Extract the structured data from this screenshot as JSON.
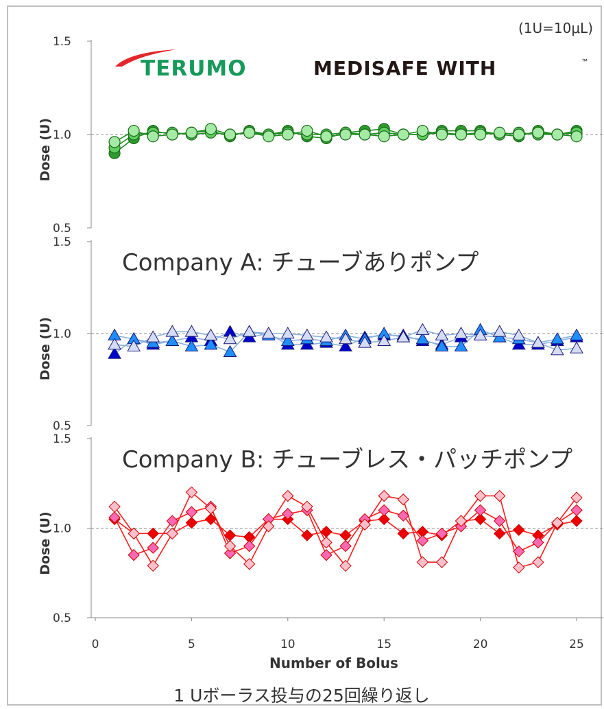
{
  "unit_note": "(1U=10μL)",
  "caption": "1 Uボーラス投与の25回繰り返し",
  "logos": {
    "terumo": "TERUMO",
    "product": "MEDISAFE WITH",
    "product_tm": "™"
  },
  "chart_data": [
    {
      "type": "line",
      "title": "",
      "ylabel": "Dose (U)",
      "ylim": [
        0.5,
        1.5
      ],
      "yticks": [
        "1.5",
        "1.0",
        "0.5"
      ],
      "reference_line": 1.0,
      "marker": "circle",
      "colors": {
        "line": "#1e8c1e",
        "fill_dark": "#2d9b2d",
        "fill_mid": "#5fcf5f",
        "fill_light": "#a5eba5",
        "stroke": "#1a6b1a"
      },
      "x": [
        1,
        2,
        3,
        4,
        5,
        6,
        7,
        8,
        9,
        10,
        11,
        12,
        13,
        14,
        15,
        16,
        17,
        18,
        19,
        20,
        21,
        22,
        23,
        24,
        25
      ],
      "series": [
        {
          "values": [
            0.9,
            0.98,
            1.02,
            1.0,
            1.01,
            1.02,
            0.99,
            1.02,
            1.0,
            1.02,
            0.99,
            0.98,
            1.01,
            1.02,
            1.03,
            1.0,
            1.0,
            1.02,
            1.02,
            1.02,
            1.0,
            0.99,
            1.02,
            1.0,
            1.02
          ]
        },
        {
          "values": [
            0.93,
            1.0,
            1.01,
            1.01,
            1.0,
            1.01,
            1.0,
            1.01,
            1.0,
            1.01,
            1.0,
            1.0,
            1.01,
            1.0,
            1.01,
            1.0,
            1.0,
            1.01,
            1.0,
            1.01,
            1.0,
            1.01,
            1.0,
            1.0,
            1.01
          ]
        },
        {
          "values": [
            0.96,
            1.02,
            0.99,
            1.0,
            1.01,
            1.03,
            1.0,
            1.01,
            0.99,
            1.0,
            1.02,
            0.99,
            1.0,
            1.0,
            0.99,
            1.0,
            1.02,
            1.0,
            1.0,
            1.0,
            1.01,
            1.0,
            1.01,
            1.0,
            0.99
          ]
        }
      ]
    },
    {
      "type": "line",
      "title": "Company A: チューブありポンプ",
      "ylabel": "Dose (U)",
      "ylim": [
        0.5,
        1.5
      ],
      "yticks": [
        "1.5",
        "1.0",
        "0.5"
      ],
      "reference_line": 1.0,
      "marker": "triangle",
      "colors": {
        "line": "#8ab0dc",
        "fill_dark": "#0000cc",
        "fill_mid": "#1f8fff",
        "fill_light": "#d5dcf5",
        "stroke": "#1a1a7a"
      },
      "x": [
        1,
        2,
        3,
        4,
        5,
        6,
        7,
        8,
        9,
        10,
        11,
        12,
        13,
        14,
        15,
        16,
        17,
        18,
        19,
        20,
        21,
        22,
        23,
        24,
        25
      ],
      "series": [
        {
          "values": [
            0.89,
            0.97,
            0.94,
            0.96,
            0.98,
            0.96,
            1.01,
            0.98,
            1.0,
            0.94,
            0.94,
            0.95,
            0.93,
            0.98,
            0.99,
            0.99,
            0.96,
            0.94,
            0.98,
            0.99,
            0.98,
            0.94,
            0.94,
            0.96,
            0.98
          ]
        },
        {
          "values": [
            0.99,
            0.97,
            0.95,
            0.96,
            0.93,
            0.94,
            0.9,
            1.01,
            0.99,
            0.96,
            0.97,
            0.96,
            0.99,
            0.97,
            1.0,
            0.98,
            0.97,
            0.93,
            0.93,
            1.02,
            0.98,
            0.97,
            0.95,
            0.97,
            0.99
          ]
        },
        {
          "values": [
            0.94,
            0.93,
            0.98,
            1.01,
            1.01,
            0.99,
            0.97,
            1.01,
            1.0,
            1.0,
            0.99,
            0.98,
            0.97,
            0.95,
            0.96,
            0.98,
            1.02,
            0.99,
            1.0,
            0.99,
            1.01,
            0.99,
            0.95,
            0.91,
            0.92
          ]
        }
      ]
    },
    {
      "type": "line",
      "title": "Company B: チューブレス・パッチポンプ",
      "xlabel": "Number of Bolus",
      "ylabel": "Dose (U)",
      "ylim": [
        0.5,
        1.5
      ],
      "xlim": [
        0,
        25
      ],
      "xticks": [
        "0",
        "5",
        "10",
        "15",
        "20",
        "25"
      ],
      "yticks": [
        "1.5",
        "1.0",
        "0.5"
      ],
      "reference_line": 1.0,
      "marker": "diamond",
      "colors": {
        "line": "#ff1a1a",
        "fill_dark": "#ee0000",
        "fill_mid": "#ff69b4",
        "fill_light": "#ffc0cb",
        "stroke": "#cc0000"
      },
      "x": [
        1,
        2,
        3,
        4,
        5,
        6,
        7,
        8,
        9,
        10,
        11,
        12,
        13,
        14,
        15,
        16,
        17,
        18,
        19,
        20,
        21,
        22,
        23,
        24,
        25
      ],
      "series": [
        {
          "values": [
            1.05,
            0.97,
            0.97,
            0.97,
            1.03,
            1.05,
            0.96,
            0.95,
            1.05,
            1.05,
            0.96,
            0.98,
            0.96,
            1.04,
            1.05,
            0.97,
            0.98,
            0.96,
            1.04,
            1.05,
            0.97,
            0.99,
            0.96,
            1.02,
            1.04
          ]
        },
        {
          "values": [
            1.06,
            0.85,
            0.89,
            1.04,
            1.09,
            1.12,
            0.86,
            0.9,
            1.05,
            1.08,
            1.1,
            0.85,
            0.9,
            1.05,
            1.1,
            1.07,
            0.93,
            0.97,
            1.01,
            1.1,
            1.04,
            0.87,
            0.92,
            1.03,
            1.1
          ]
        },
        {
          "values": [
            1.12,
            0.97,
            0.79,
            0.97,
            1.2,
            1.11,
            0.9,
            0.8,
            1.01,
            1.18,
            1.12,
            0.92,
            0.79,
            1.02,
            1.18,
            1.16,
            0.81,
            0.81,
            1.04,
            1.18,
            1.18,
            0.78,
            0.81,
            1.03,
            1.17
          ]
        }
      ]
    }
  ]
}
